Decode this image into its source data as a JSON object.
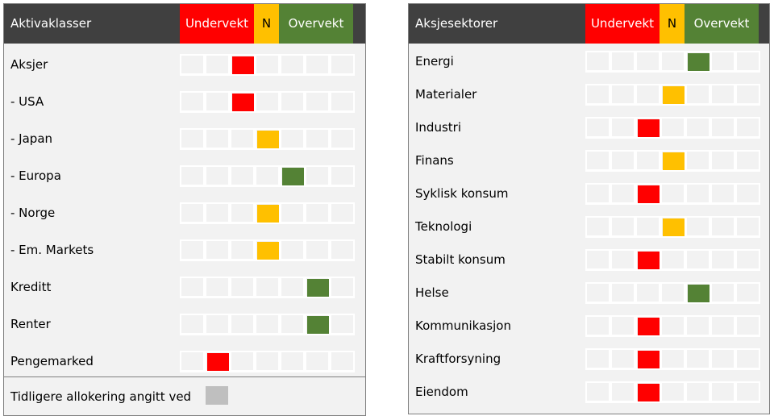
{
  "colors": {
    "header_bg": "#404040",
    "under": "#ff0000",
    "neutral": "#ffc000",
    "over": "#548235",
    "previous": "#bfbfbf",
    "panel_bg": "#f2f2f2"
  },
  "scale": {
    "under_label": "Undervekt",
    "neutral_label": "N",
    "over_label": "Overvekt"
  },
  "chart_data": [
    {
      "type": "table",
      "title": "Aktivaklasser",
      "scale": [
        "Undervekt",
        "N",
        "Overvekt"
      ],
      "rows": [
        {
          "label": "Aksjer",
          "position": 3,
          "signal": "under"
        },
        {
          "label": "- USA",
          "position": 3,
          "signal": "under"
        },
        {
          "label": "- Japan",
          "position": 4,
          "signal": "neutral"
        },
        {
          "label": "- Europa",
          "position": 5,
          "signal": "over"
        },
        {
          "label": "- Norge",
          "position": 4,
          "signal": "neutral"
        },
        {
          "label": "- Em. Markets",
          "position": 4,
          "signal": "neutral"
        },
        {
          "label": "Kreditt",
          "position": 6,
          "signal": "over"
        },
        {
          "label": "Renter",
          "position": 6,
          "signal": "over"
        },
        {
          "label": "Pengemarked",
          "position": 2,
          "signal": "under"
        }
      ],
      "legend": "Tidligere allokering angitt ved"
    },
    {
      "type": "table",
      "title": "Aksjesektorer",
      "scale": [
        "Undervekt",
        "N",
        "Overvekt"
      ],
      "rows": [
        {
          "label": "Energi",
          "position": 5,
          "signal": "over"
        },
        {
          "label": "Materialer",
          "position": 4,
          "signal": "neutral"
        },
        {
          "label": "Industri",
          "position": 3,
          "signal": "under"
        },
        {
          "label": "Finans",
          "position": 4,
          "signal": "neutral"
        },
        {
          "label": "Syklisk konsum",
          "position": 3,
          "signal": "under"
        },
        {
          "label": "Teknologi",
          "position": 4,
          "signal": "neutral"
        },
        {
          "label": "Stabilt konsum",
          "position": 3,
          "signal": "under"
        },
        {
          "label": "Helse",
          "position": 5,
          "signal": "over"
        },
        {
          "label": "Kommunikasjon",
          "position": 3,
          "signal": "under"
        },
        {
          "label": "Kraftforsyning",
          "position": 3,
          "signal": "under"
        },
        {
          "label": "Eiendom",
          "position": 3,
          "signal": "under"
        }
      ]
    }
  ]
}
